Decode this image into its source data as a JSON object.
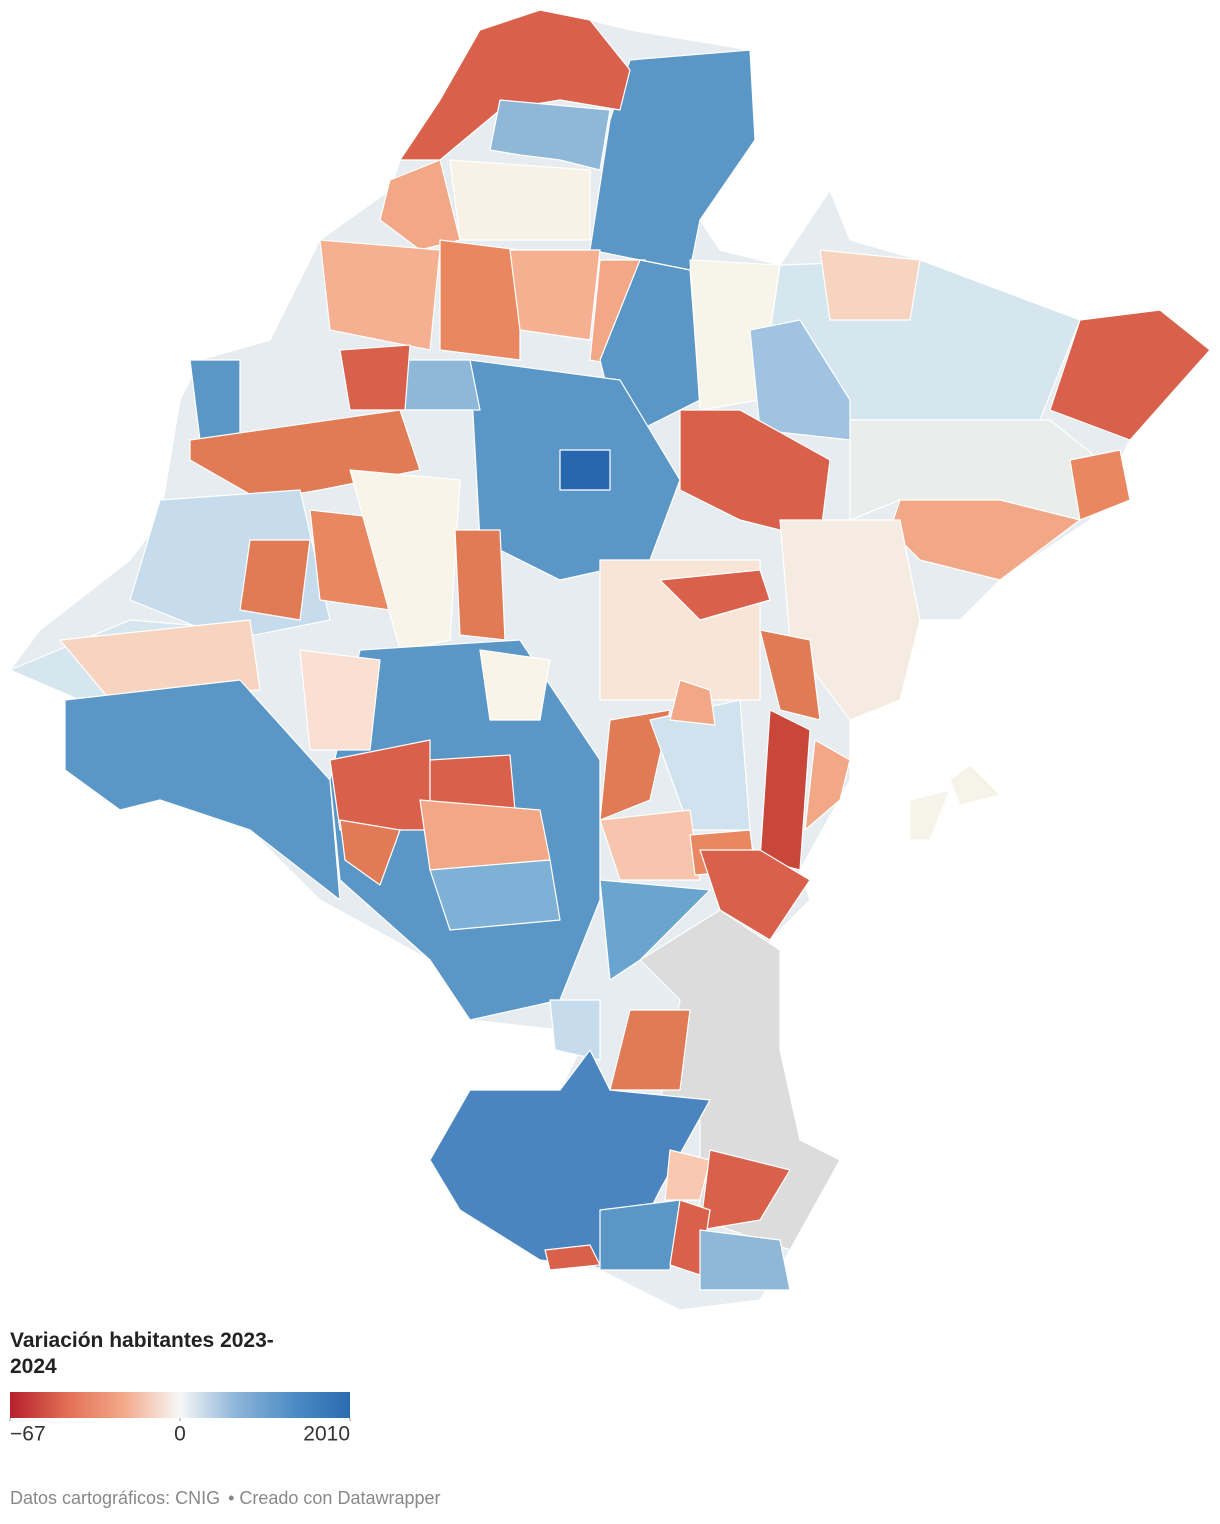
{
  "legend": {
    "title": "Variación habitantes 2023-2024",
    "ticks": [
      {
        "value": -67,
        "label": "−67"
      },
      0,
      2010
    ],
    "colors": [
      "#b5202e",
      "#e36e54",
      "#f3a98a",
      "#f7f7f7",
      "#8cb5d8",
      "#4d8cc5",
      "#2a6cb0"
    ]
  },
  "footer": {
    "source": "Datos cartográficos: CNIG",
    "credit": "• Creado con Datawrapper"
  }
}
